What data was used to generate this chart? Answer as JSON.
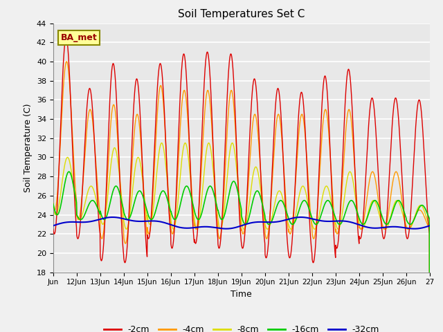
{
  "title": "Soil Temperatures Set C",
  "xlabel": "Time",
  "ylabel": "Soil Temperature (C)",
  "ylim": [
    18,
    44
  ],
  "yticks": [
    18,
    20,
    22,
    24,
    26,
    28,
    30,
    32,
    34,
    36,
    38,
    40,
    42,
    44
  ],
  "colors": {
    "-2cm": "#dd0000",
    "-4cm": "#ff9900",
    "-8cm": "#dddd00",
    "-16cm": "#00cc00",
    "-32cm": "#0000cc"
  },
  "legend_label": "BA_met",
  "legend_box_color": "#ffff99",
  "legend_box_edge": "#888800",
  "legend_text_color": "#990000",
  "plot_bg": "#e8e8e8",
  "fig_bg": "#f0f0f0",
  "grid_color": "#ffffff",
  "n_days": 16,
  "daily_peaks2": [
    42.5,
    37.2,
    39.8,
    38.2,
    39.8,
    40.8,
    41.0,
    40.8,
    38.2,
    37.2,
    36.8,
    38.5,
    39.2,
    36.2,
    36.2,
    36.0
  ],
  "daily_troughs2": [
    22.0,
    21.5,
    19.2,
    19.0,
    21.5,
    20.5,
    21.0,
    20.5,
    20.5,
    19.5,
    19.5,
    19.0,
    20.5,
    21.5,
    21.5,
    21.5
  ],
  "daily_peaks4": [
    40.0,
    35.0,
    35.5,
    34.5,
    37.5,
    37.0,
    37.0,
    37.0,
    34.5,
    34.5,
    34.5,
    35.0,
    35.0,
    28.5,
    28.5,
    24.5
  ],
  "daily_troughs4": [
    24.5,
    23.5,
    21.5,
    21.0,
    22.0,
    22.0,
    22.5,
    21.5,
    22.0,
    21.5,
    22.0,
    21.5,
    22.0,
    22.5,
    22.5,
    22.5
  ],
  "daily_peaks8": [
    30.0,
    27.0,
    31.0,
    30.0,
    31.5,
    31.5,
    31.5,
    31.5,
    29.0,
    26.5,
    27.0,
    27.0,
    28.5,
    25.5,
    25.5,
    25.0
  ],
  "daily_troughs8": [
    24.0,
    23.5,
    23.0,
    22.5,
    23.0,
    22.5,
    22.5,
    22.5,
    22.5,
    22.5,
    22.5,
    22.5,
    22.5,
    22.5,
    22.5,
    22.5
  ],
  "daily_peaks16": [
    28.5,
    25.5,
    27.0,
    26.5,
    26.5,
    27.0,
    27.0,
    27.5,
    26.5,
    25.5,
    25.5,
    25.5,
    25.5,
    25.5,
    25.5,
    25.0
  ],
  "daily_troughs16": [
    24.0,
    23.5,
    23.5,
    23.5,
    23.5,
    23.5,
    23.5,
    23.5,
    23.0,
    23.0,
    23.0,
    23.0,
    23.0,
    23.0,
    23.0,
    23.0
  ],
  "phase2": 0.3,
  "phase4": 0.32,
  "phase8": 0.36,
  "phase16": 0.42,
  "pts_per_day": 96
}
